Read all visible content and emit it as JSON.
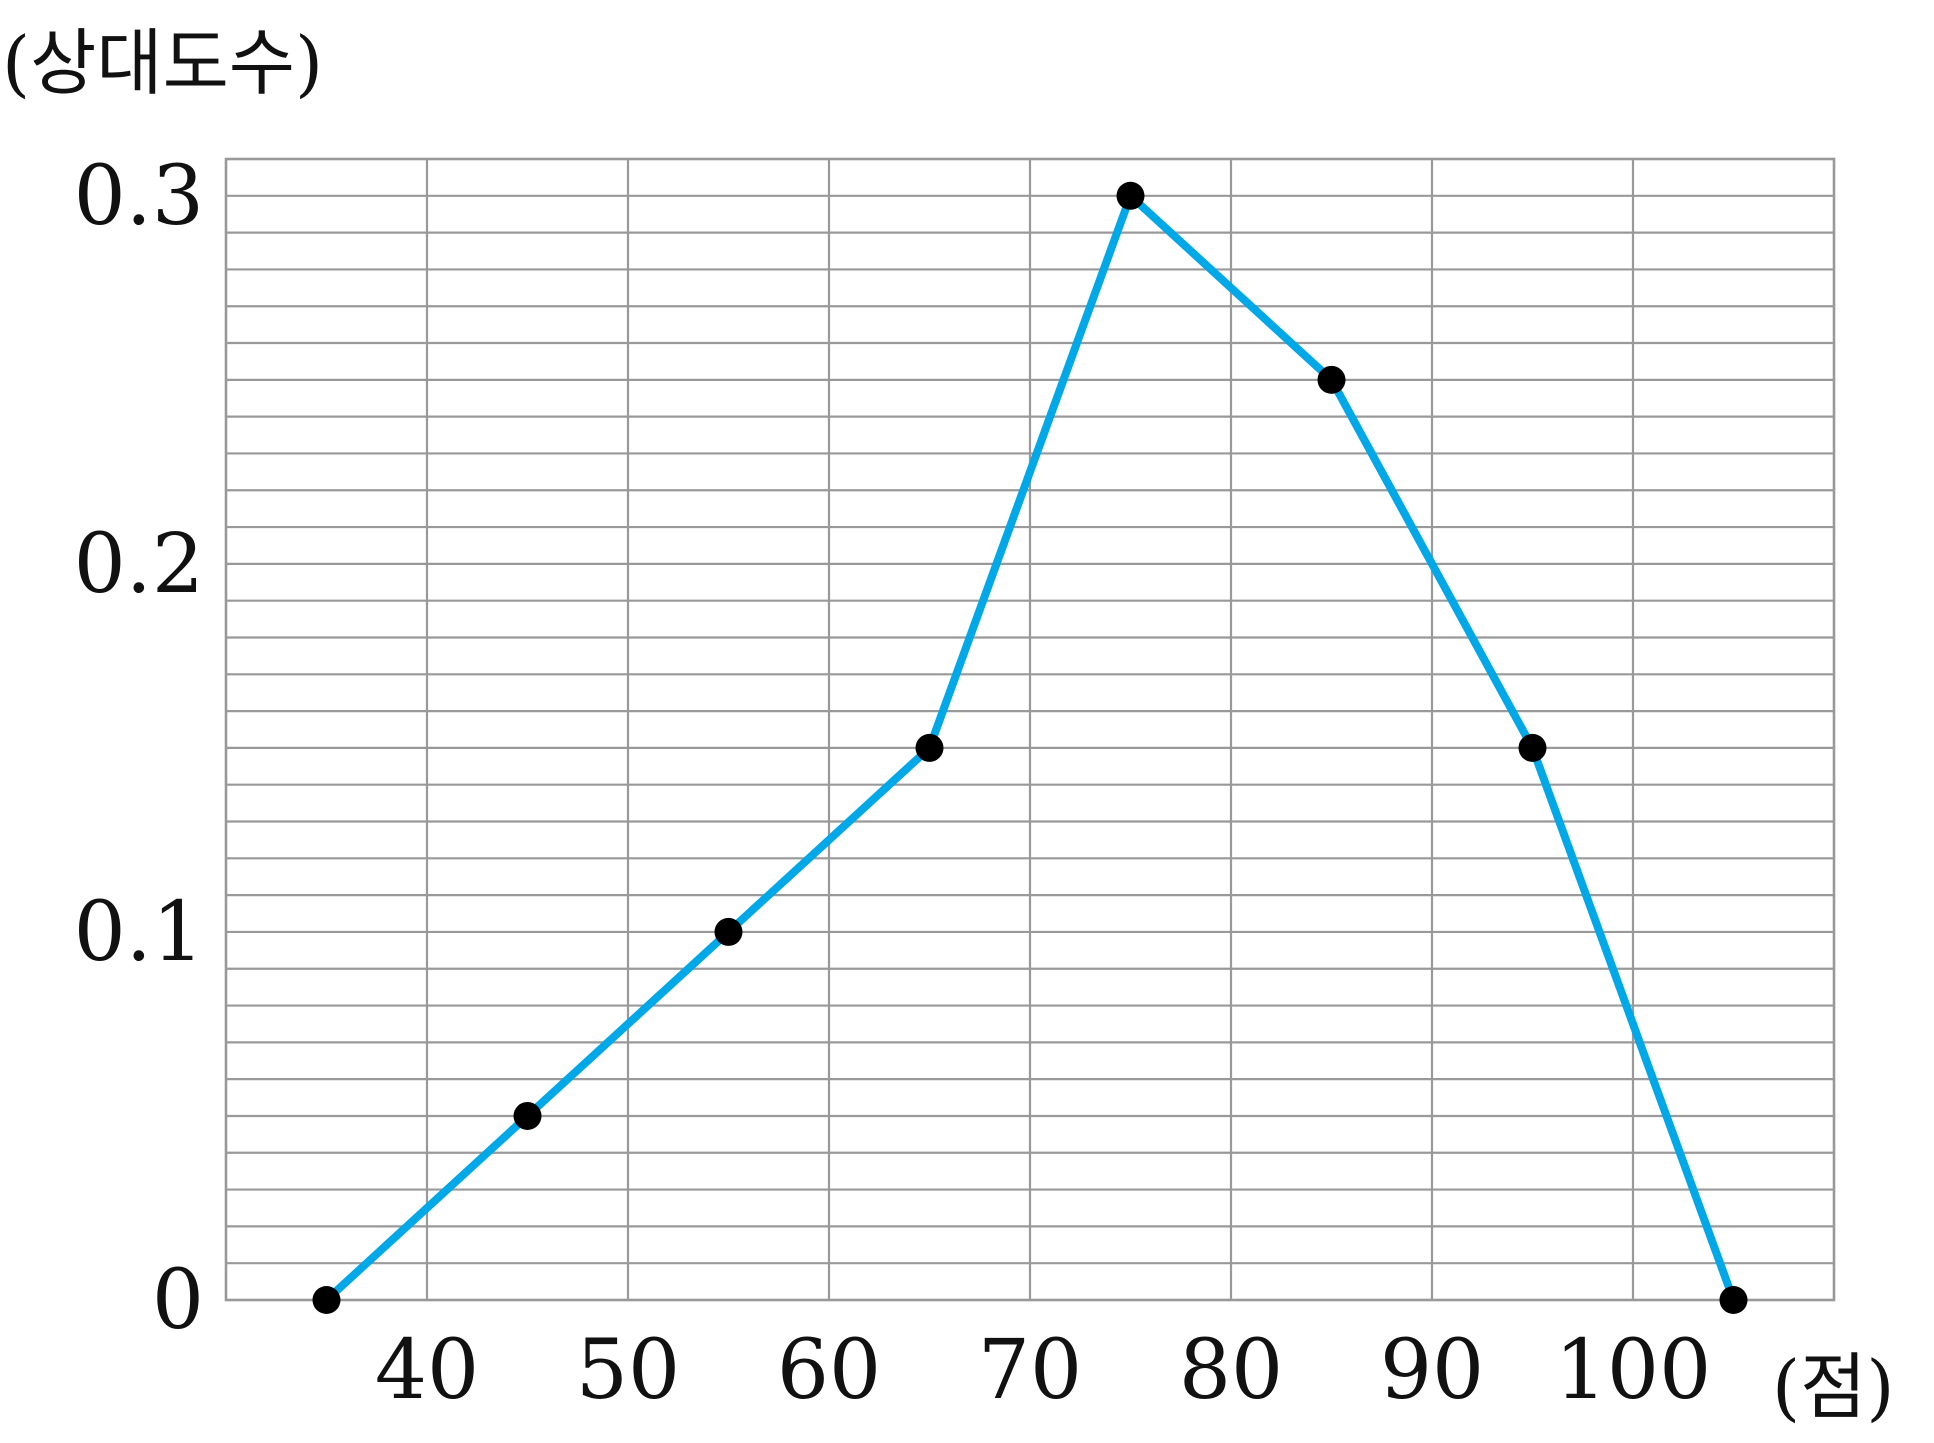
{
  "chart_data": {
    "type": "line",
    "title": "",
    "xlabel": "(점)",
    "ylabel": "(상대도수)",
    "x": [
      35,
      45,
      55,
      65,
      75,
      85,
      95,
      105
    ],
    "series": [
      {
        "values": [
          0,
          0.05,
          0.1,
          0.15,
          0.3,
          0.25,
          0.15,
          0
        ]
      }
    ],
    "xlim": [
      30,
      110
    ],
    "ylim": [
      0,
      0.31
    ],
    "xticks": [
      "40",
      "50",
      "60",
      "70",
      "80",
      "90",
      "100"
    ],
    "xtick_values": [
      40,
      50,
      60,
      70,
      80,
      90,
      100
    ],
    "yticks": [
      "0",
      "0.1",
      "0.2",
      "0.3"
    ],
    "ytick_values": [
      0,
      0.1,
      0.2,
      0.3
    ],
    "minor_y_step": 0.01,
    "grid": true,
    "legend": "none",
    "colors": {
      "line": "#00a8e8",
      "marker": "#000000",
      "grid": "#999999"
    }
  }
}
